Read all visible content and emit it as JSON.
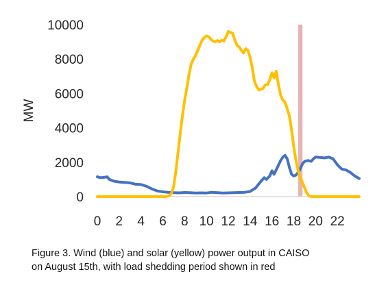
{
  "chart_data": {
    "type": "line",
    "ylabel": "MW",
    "xlabel": "",
    "xlim": [
      0,
      24
    ],
    "ylim": [
      0,
      10000
    ],
    "x_ticks": [
      0,
      2,
      4,
      6,
      8,
      10,
      12,
      14,
      16,
      18,
      20,
      22
    ],
    "y_ticks": [
      0,
      2000,
      4000,
      6000,
      8000,
      10000
    ],
    "grid": false,
    "shaded_region": {
      "x": [
        18.4,
        18.8
      ],
      "color": "#e8b3b3"
    },
    "series": [
      {
        "color": "#4472c4",
        "points": [
          [
            0,
            1150
          ],
          [
            0.3,
            1100
          ],
          [
            0.6,
            1120
          ],
          [
            0.9,
            1150
          ],
          [
            1.1,
            1000
          ],
          [
            1.5,
            900
          ],
          [
            2,
            850
          ],
          [
            2.5,
            830
          ],
          [
            3,
            800
          ],
          [
            3.5,
            720
          ],
          [
            4,
            700
          ],
          [
            4.5,
            600
          ],
          [
            5,
            450
          ],
          [
            5.5,
            330
          ],
          [
            6,
            280
          ],
          [
            6.5,
            250
          ],
          [
            7,
            230
          ],
          [
            7.5,
            220
          ],
          [
            8,
            240
          ],
          [
            8.5,
            230
          ],
          [
            9,
            210
          ],
          [
            9.5,
            220
          ],
          [
            10,
            210
          ],
          [
            10.5,
            250
          ],
          [
            11,
            230
          ],
          [
            11.5,
            210
          ],
          [
            12,
            220
          ],
          [
            12.5,
            230
          ],
          [
            13,
            240
          ],
          [
            13.5,
            250
          ],
          [
            14,
            300
          ],
          [
            14.5,
            500
          ],
          [
            15,
            900
          ],
          [
            15.3,
            1100
          ],
          [
            15.5,
            1000
          ],
          [
            15.8,
            1200
          ],
          [
            16,
            1500
          ],
          [
            16.2,
            1300
          ],
          [
            16.5,
            1700
          ],
          [
            16.8,
            2100
          ],
          [
            17,
            2300
          ],
          [
            17.2,
            2400
          ],
          [
            17.4,
            2200
          ],
          [
            17.6,
            1700
          ],
          [
            17.8,
            1300
          ],
          [
            18,
            1200
          ],
          [
            18.2,
            1250
          ],
          [
            18.5,
            1500
          ],
          [
            18.8,
            1900
          ],
          [
            19,
            2050
          ],
          [
            19.3,
            2100
          ],
          [
            19.6,
            2050
          ],
          [
            19.8,
            2200
          ],
          [
            20,
            2300
          ],
          [
            20.4,
            2280
          ],
          [
            20.8,
            2250
          ],
          [
            21.2,
            2300
          ],
          [
            21.6,
            2200
          ],
          [
            22,
            1850
          ],
          [
            22.4,
            1600
          ],
          [
            22.8,
            1550
          ],
          [
            23.2,
            1400
          ],
          [
            23.6,
            1200
          ],
          [
            24,
            1050
          ]
        ]
      },
      {
        "color": "#ffc000",
        "points": [
          [
            0,
            0
          ],
          [
            5.5,
            0
          ],
          [
            6,
            0
          ],
          [
            6.3,
            0
          ],
          [
            6.6,
            50
          ],
          [
            6.8,
            200
          ],
          [
            7,
            600
          ],
          [
            7.2,
            1500
          ],
          [
            7.4,
            2600
          ],
          [
            7.6,
            3700
          ],
          [
            7.8,
            4700
          ],
          [
            8,
            5600
          ],
          [
            8.2,
            6300
          ],
          [
            8.4,
            7100
          ],
          [
            8.6,
            7700
          ],
          [
            8.8,
            8000
          ],
          [
            9,
            8200
          ],
          [
            9.2,
            8500
          ],
          [
            9.4,
            8800
          ],
          [
            9.6,
            9100
          ],
          [
            9.8,
            9250
          ],
          [
            10,
            9350
          ],
          [
            10.2,
            9300
          ],
          [
            10.4,
            9150
          ],
          [
            10.6,
            9050
          ],
          [
            10.8,
            9000
          ],
          [
            11,
            9080
          ],
          [
            11.2,
            9000
          ],
          [
            11.4,
            9100
          ],
          [
            11.6,
            9050
          ],
          [
            11.8,
            9300
          ],
          [
            12,
            9600
          ],
          [
            12.2,
            9550
          ],
          [
            12.4,
            9500
          ],
          [
            12.6,
            9100
          ],
          [
            12.8,
            8800
          ],
          [
            13,
            8700
          ],
          [
            13.2,
            8500
          ],
          [
            13.4,
            8350
          ],
          [
            13.6,
            8600
          ],
          [
            13.8,
            8500
          ],
          [
            14,
            8100
          ],
          [
            14.2,
            7500
          ],
          [
            14.4,
            6700
          ],
          [
            14.6,
            6400
          ],
          [
            14.8,
            6200
          ],
          [
            15,
            6250
          ],
          [
            15.2,
            6300
          ],
          [
            15.4,
            6500
          ],
          [
            15.6,
            6500
          ],
          [
            15.8,
            6800
          ],
          [
            16,
            7200
          ],
          [
            16.2,
            6900
          ],
          [
            16.4,
            7300
          ],
          [
            16.6,
            6500
          ],
          [
            16.8,
            5900
          ],
          [
            17,
            5600
          ],
          [
            17.2,
            5500
          ],
          [
            17.4,
            5100
          ],
          [
            17.6,
            4700
          ],
          [
            17.8,
            3900
          ],
          [
            18,
            2900
          ],
          [
            18.2,
            2100
          ],
          [
            18.4,
            1500
          ],
          [
            18.6,
            1100
          ],
          [
            18.8,
            800
          ],
          [
            19,
            500
          ],
          [
            19.2,
            200
          ],
          [
            19.4,
            50
          ],
          [
            19.6,
            0
          ],
          [
            20,
            0
          ],
          [
            24,
            0
          ]
        ]
      }
    ]
  },
  "caption": {
    "line1": "Figure 3. Wind (blue) and solar (yellow) power output in CAISO",
    "line2": "on August 15th, with load shedding period shown in red"
  }
}
